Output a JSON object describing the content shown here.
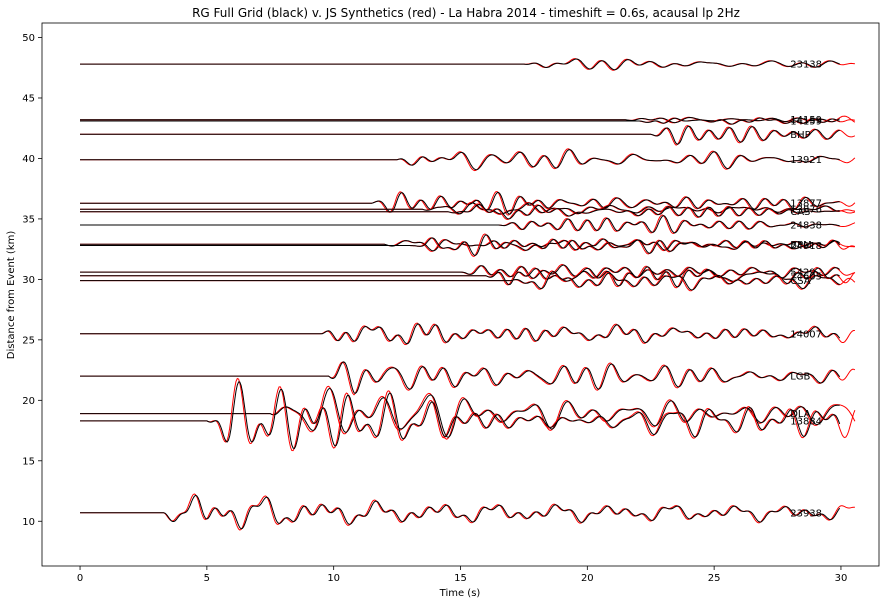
{
  "chart_data": {
    "type": "line",
    "title": "RG Full Grid (black) v. JS Synthetics (red) - La Habra 2014 - timeshift = 0.6s, acausal lp 2Hz",
    "xlabel": "Time (s)",
    "ylabel": "Distance from Event (km)",
    "xlim": [
      -1.5,
      31.5
    ],
    "ylim": [
      6.3,
      51.2
    ],
    "xticks": [
      0,
      5,
      10,
      15,
      20,
      25,
      30
    ],
    "yticks": [
      10,
      15,
      20,
      25,
      30,
      35,
      40,
      45,
      50
    ],
    "grid": false,
    "colors": {
      "observed": "#000000",
      "synthetic": "#ff0000"
    },
    "stations": [
      {
        "label": "23138",
        "distance": 47.8,
        "onset": 17.5,
        "amp": 0.55
      },
      {
        "label": "14159",
        "distance": 43.2,
        "onset": 21.5,
        "amp": 0.35
      },
      {
        "label": "14159b",
        "display": "14159",
        "distance": 43.1,
        "onset": 22.0,
        "amp": 0.3
      },
      {
        "label": "BHP",
        "distance": 42.0,
        "onset": 22.5,
        "amp": 0.6
      },
      {
        "label": "13921",
        "distance": 39.9,
        "onset": 12.5,
        "amp": 1.0
      },
      {
        "label": "13877",
        "distance": 36.3,
        "onset": 11.5,
        "amp": 0.8
      },
      {
        "label": "13876",
        "distance": 35.8,
        "onset": 13.5,
        "amp": 0.9
      },
      {
        "label": "CAS",
        "distance": 35.6,
        "onset": 14.5,
        "amp": 0.9
      },
      {
        "label": "24838",
        "distance": 34.5,
        "onset": 16.5,
        "amp": 0.6
      },
      {
        "label": "BPM",
        "distance": 32.9,
        "onset": 12.0,
        "amp": 0.7
      },
      {
        "label": "24918",
        "distance": 32.8,
        "onset": 13.0,
        "amp": 0.7
      },
      {
        "label": "5429",
        "distance": 30.6,
        "onset": 15.0,
        "amp": 0.9
      },
      {
        "label": "24605",
        "distance": 30.3,
        "onset": 16.0,
        "amp": 1.0
      },
      {
        "label": "CSA",
        "distance": 29.9,
        "onset": 17.0,
        "amp": 0.9
      },
      {
        "label": "14007",
        "distance": 25.5,
        "onset": 9.5,
        "amp": 1.3
      },
      {
        "label": "LGB",
        "distance": 22.0,
        "onset": 9.8,
        "amp": 1.4
      },
      {
        "label": "DLA",
        "distance": 18.9,
        "onset": 7.5,
        "amp": 2.2
      },
      {
        "label": "13884",
        "distance": 18.3,
        "onset": 5.0,
        "amp": 2.5
      },
      {
        "label": "23938",
        "distance": 10.7,
        "onset": 3.3,
        "amp": 1.8
      }
    ]
  }
}
